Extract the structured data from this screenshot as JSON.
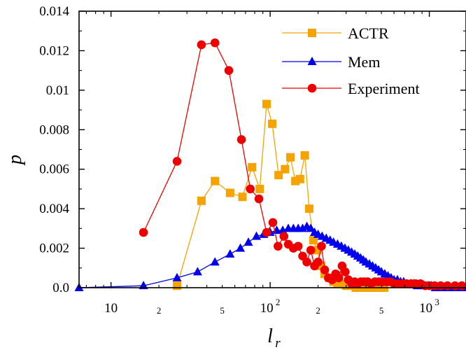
{
  "chart_data": {
    "type": "line",
    "xscale": "log",
    "xlim": [
      6.3,
      1700
    ],
    "ylim": [
      0,
      0.014
    ],
    "ylabel": "p",
    "xlabel": {
      "main": "l",
      "sub": "r"
    },
    "yticks": [
      "0.0",
      "0.002",
      "0.004",
      "0.006",
      "0.008",
      "0.01",
      "0.012",
      "0.014"
    ],
    "ytick_values": [
      0,
      0.002,
      0.004,
      0.006,
      0.008,
      0.01,
      0.012,
      0.014
    ],
    "xticks_major": [
      {
        "value": 10,
        "label": "10",
        "sup": ""
      },
      {
        "value": 100,
        "label": "10",
        "sup": "2"
      },
      {
        "value": 1000,
        "label": "10",
        "sup": "3"
      }
    ],
    "xticks_minor_labels": [
      {
        "value": 20,
        "label": "2"
      },
      {
        "value": 50,
        "label": "5"
      },
      {
        "value": 200,
        "label": "2"
      },
      {
        "value": 500,
        "label": "5"
      }
    ],
    "grid": false,
    "legend_position": "top-right",
    "series": [
      {
        "name": "ACTR",
        "color": "#f5a300",
        "marker": "square",
        "points": [
          [
            26,
            0.0001
          ],
          [
            37,
            0.0044
          ],
          [
            45,
            0.0054
          ],
          [
            56,
            0.0048
          ],
          [
            67,
            0.0046
          ],
          [
            77,
            0.0061
          ],
          [
            86,
            0.005
          ],
          [
            95,
            0.0093
          ],
          [
            103,
            0.0083
          ],
          [
            113,
            0.0057
          ],
          [
            124,
            0.006
          ],
          [
            134,
            0.0066
          ],
          [
            144,
            0.0054
          ],
          [
            154,
            0.0055
          ],
          [
            165,
            0.0067
          ],
          [
            176,
            0.004
          ],
          [
            187,
            0.0024
          ],
          [
            198,
            0.0019
          ],
          [
            209,
            0.0011
          ],
          [
            220,
            0.0007
          ],
          [
            235,
            0.0005
          ],
          [
            250,
            0.0003
          ],
          [
            265,
            0.0002
          ],
          [
            280,
            0.0002
          ],
          [
            300,
            0.0001
          ],
          [
            320,
            0.0001
          ],
          [
            345,
            0.0
          ],
          [
            370,
            0.0
          ],
          [
            395,
            0.0
          ],
          [
            420,
            0.0
          ],
          [
            450,
            0.0
          ],
          [
            480,
            0.0
          ],
          [
            520,
            0.0
          ]
        ]
      },
      {
        "name": "Mem",
        "color": "#0000ee",
        "marker": "triangle",
        "points": [
          [
            6.3,
            0.0
          ],
          [
            16,
            0.0001
          ],
          [
            26,
            0.0005
          ],
          [
            35,
            0.0008
          ],
          [
            45,
            0.0013
          ],
          [
            56,
            0.0017
          ],
          [
            65,
            0.002
          ],
          [
            73,
            0.0023
          ],
          [
            82,
            0.0026
          ],
          [
            91,
            0.0027
          ],
          [
            100,
            0.0028
          ],
          [
            110,
            0.0029
          ],
          [
            120,
            0.0029
          ],
          [
            130,
            0.003
          ],
          [
            140,
            0.003
          ],
          [
            150,
            0.003
          ],
          [
            160,
            0.003
          ],
          [
            170,
            0.0031
          ],
          [
            180,
            0.003
          ],
          [
            190,
            0.0028
          ],
          [
            200,
            0.0027
          ],
          [
            212,
            0.0026
          ],
          [
            225,
            0.0025
          ],
          [
            238,
            0.0024
          ],
          [
            250,
            0.0023
          ],
          [
            265,
            0.0022
          ],
          [
            280,
            0.0021
          ],
          [
            295,
            0.002
          ],
          [
            310,
            0.0019
          ],
          [
            325,
            0.0018
          ],
          [
            340,
            0.0017
          ],
          [
            355,
            0.0016
          ],
          [
            370,
            0.0015
          ],
          [
            385,
            0.0014
          ],
          [
            400,
            0.0013
          ],
          [
            420,
            0.0012
          ],
          [
            440,
            0.0011
          ],
          [
            460,
            0.001
          ],
          [
            480,
            0.0009
          ],
          [
            500,
            0.0008
          ],
          [
            525,
            0.0007
          ],
          [
            550,
            0.0006
          ],
          [
            575,
            0.0005
          ],
          [
            600,
            0.0004
          ],
          [
            630,
            0.0004
          ],
          [
            660,
            0.0003
          ],
          [
            690,
            0.0003
          ],
          [
            720,
            0.0002
          ],
          [
            760,
            0.0002
          ],
          [
            800,
            0.0002
          ],
          [
            840,
            0.0001
          ],
          [
            880,
            0.0001
          ],
          [
            930,
            0.0001
          ],
          [
            980,
            0.0001
          ],
          [
            1030,
            0.0001
          ],
          [
            1090,
            0.0
          ],
          [
            1150,
            0.0
          ],
          [
            1250,
            0.0
          ],
          [
            1350,
            0.0
          ],
          [
            1500,
            0.0
          ],
          [
            1650,
            0.0
          ]
        ]
      },
      {
        "name": "Experiment",
        "color": "#ee0000",
        "marker": "circle",
        "points": [
          [
            16,
            0.0028
          ],
          [
            26,
            0.0064
          ],
          [
            37,
            0.0123
          ],
          [
            45,
            0.0124
          ],
          [
            55,
            0.011
          ],
          [
            66,
            0.0075
          ],
          [
            75,
            0.005
          ],
          [
            85,
            0.0045
          ],
          [
            95,
            0.0028
          ],
          [
            104,
            0.0033
          ],
          [
            112,
            0.0021
          ],
          [
            122,
            0.0026
          ],
          [
            130,
            0.0022
          ],
          [
            140,
            0.002
          ],
          [
            150,
            0.0021
          ],
          [
            160,
            0.0016
          ],
          [
            170,
            0.0013
          ],
          [
            180,
            0.0019
          ],
          [
            190,
            0.0011
          ],
          [
            200,
            0.0013
          ],
          [
            210,
            0.0021
          ],
          [
            220,
            0.0009
          ],
          [
            232,
            0.0005
          ],
          [
            245,
            0.0004
          ],
          [
            258,
            0.0007
          ],
          [
            270,
            0.0005
          ],
          [
            283,
            0.0011
          ],
          [
            296,
            0.0008
          ],
          [
            310,
            0.0004
          ],
          [
            325,
            0.0002
          ],
          [
            340,
            0.0003
          ],
          [
            355,
            0.0002
          ],
          [
            372,
            0.0003
          ],
          [
            390,
            0.0003
          ],
          [
            410,
            0.0003
          ],
          [
            430,
            0.0002
          ],
          [
            455,
            0.0003
          ],
          [
            480,
            0.0003
          ],
          [
            510,
            0.0003
          ],
          [
            540,
            0.0003
          ],
          [
            570,
            0.0003
          ],
          [
            600,
            0.0002
          ],
          [
            640,
            0.0002
          ],
          [
            680,
            0.0002
          ],
          [
            720,
            0.0002
          ],
          [
            770,
            0.0002
          ],
          [
            820,
            0.0002
          ],
          [
            880,
            0.0002
          ],
          [
            940,
            0.0001
          ],
          [
            1000,
            0.0001
          ],
          [
            1080,
            0.0001
          ],
          [
            1180,
            0.0001
          ],
          [
            1300,
            0.0001
          ],
          [
            1450,
            0.0001
          ],
          [
            1600,
            0.0001
          ]
        ]
      }
    ]
  }
}
